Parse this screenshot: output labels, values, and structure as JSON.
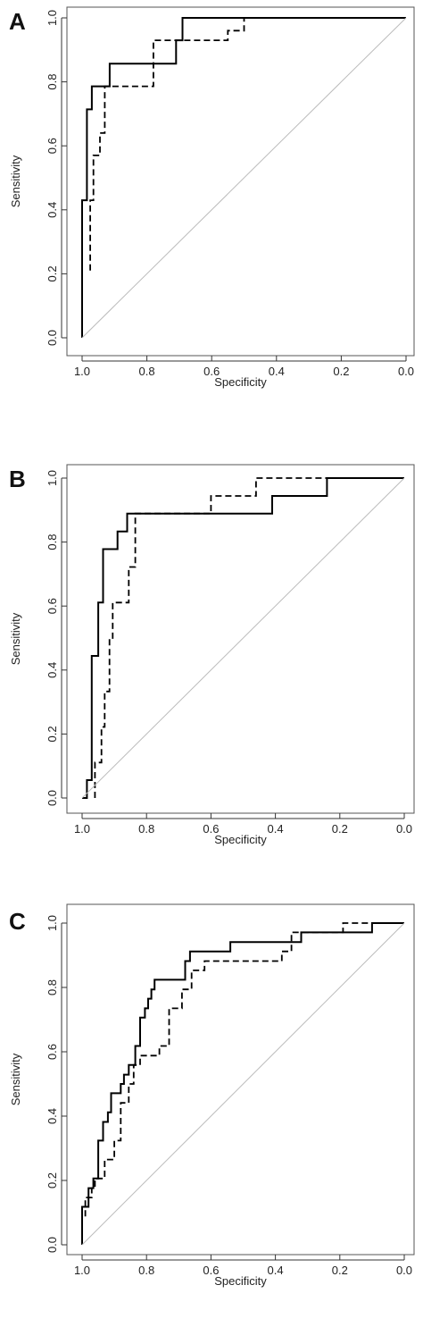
{
  "chart_data": [
    {
      "type": "line",
      "panel_label": "A",
      "xlabel": "Specificity",
      "ylabel": "Sensitivity",
      "xlim": [
        1.0,
        0.0
      ],
      "ylim": [
        0.0,
        1.0
      ],
      "x_ticks": [
        "1.0",
        "0.8",
        "0.6",
        "0.4",
        "0.2",
        "0.0"
      ],
      "y_ticks": [
        "0.0",
        "0.2",
        "0.4",
        "0.6",
        "0.8",
        "1.0"
      ],
      "grid": false,
      "series": [
        {
          "style": "solid",
          "color": "#000000",
          "x": [
            1.0,
            1.0,
            0.985,
            0.985,
            0.97,
            0.97,
            0.915,
            0.915,
            0.71,
            0.71,
            0.69,
            0.69,
            0.0
          ],
          "y": [
            0.0,
            0.43,
            0.43,
            0.714,
            0.714,
            0.786,
            0.786,
            0.857,
            0.857,
            0.93,
            0.93,
            1.0,
            1.0
          ]
        },
        {
          "style": "dashed",
          "color": "#000000",
          "x": [
            0.975,
            0.975,
            0.965,
            0.965,
            0.945,
            0.945,
            0.93,
            0.93,
            0.92,
            0.92,
            0.78,
            0.78,
            0.55,
            0.55,
            0.5,
            0.5,
            0.0
          ],
          "y": [
            0.21,
            0.43,
            0.43,
            0.57,
            0.57,
            0.64,
            0.64,
            0.786,
            0.786,
            0.786,
            0.786,
            0.93,
            0.93,
            0.96,
            0.96,
            1.0,
            1.0
          ]
        },
        {
          "style": "reference",
          "color": "#bbbbbb",
          "x": [
            1.0,
            0.0
          ],
          "y": [
            0.0,
            1.0
          ]
        }
      ]
    },
    {
      "type": "line",
      "panel_label": "B",
      "xlabel": "Specificity",
      "ylabel": "Sensitivity",
      "xlim": [
        1.0,
        0.0
      ],
      "ylim": [
        0.0,
        1.0
      ],
      "x_ticks": [
        "1.0",
        "0.8",
        "0.6",
        "0.4",
        "0.2",
        "0.0"
      ],
      "y_ticks": [
        "0.0",
        "0.2",
        "0.4",
        "0.6",
        "0.8",
        "1.0"
      ],
      "grid": false,
      "series": [
        {
          "style": "solid",
          "color": "#000000",
          "x": [
            1.0,
            0.985,
            0.985,
            0.97,
            0.97,
            0.95,
            0.95,
            0.935,
            0.935,
            0.89,
            0.89,
            0.86,
            0.86,
            0.83,
            0.83,
            0.41,
            0.41,
            0.24,
            0.24,
            0.0
          ],
          "y": [
            0.0,
            0.0,
            0.056,
            0.056,
            0.444,
            0.444,
            0.611,
            0.611,
            0.778,
            0.778,
            0.833,
            0.833,
            0.889,
            0.889,
            0.889,
            0.889,
            0.944,
            0.944,
            1.0,
            1.0
          ]
        },
        {
          "style": "dashed",
          "color": "#000000",
          "x": [
            0.96,
            0.96,
            0.94,
            0.94,
            0.93,
            0.93,
            0.915,
            0.915,
            0.905,
            0.905,
            0.885,
            0.885,
            0.855,
            0.855,
            0.835,
            0.835,
            0.6,
            0.6,
            0.46,
            0.46,
            0.0
          ],
          "y": [
            0.0,
            0.111,
            0.111,
            0.222,
            0.222,
            0.333,
            0.333,
            0.5,
            0.5,
            0.611,
            0.611,
            0.611,
            0.611,
            0.722,
            0.722,
            0.889,
            0.889,
            0.944,
            0.944,
            1.0,
            1.0
          ]
        },
        {
          "style": "reference",
          "color": "#bbbbbb",
          "x": [
            1.0,
            0.0
          ],
          "y": [
            0.0,
            1.0
          ]
        }
      ]
    },
    {
      "type": "line",
      "panel_label": "C",
      "xlabel": "Specificity",
      "ylabel": "Sensitivity",
      "xlim": [
        1.0,
        0.0
      ],
      "ylim": [
        0.0,
        1.0
      ],
      "x_ticks": [
        "1.0",
        "0.8",
        "0.6",
        "0.4",
        "0.2",
        "0.0"
      ],
      "y_ticks": [
        "0.0",
        "0.2",
        "0.4",
        "0.6",
        "0.8",
        "1.0"
      ],
      "grid": false,
      "series": [
        {
          "style": "solid",
          "color": "#000000",
          "x": [
            1.0,
            1.0,
            0.98,
            0.98,
            0.965,
            0.965,
            0.95,
            0.95,
            0.935,
            0.935,
            0.92,
            0.92,
            0.91,
            0.91,
            0.88,
            0.88,
            0.87,
            0.87,
            0.855,
            0.855,
            0.835,
            0.835,
            0.82,
            0.82,
            0.805,
            0.805,
            0.795,
            0.795,
            0.785,
            0.785,
            0.775,
            0.775,
            0.68,
            0.68,
            0.665,
            0.665,
            0.54,
            0.54,
            0.32,
            0.32,
            0.1,
            0.1,
            0.0
          ],
          "y": [
            0.0,
            0.118,
            0.118,
            0.176,
            0.176,
            0.206,
            0.206,
            0.324,
            0.324,
            0.382,
            0.382,
            0.412,
            0.412,
            0.471,
            0.471,
            0.5,
            0.5,
            0.529,
            0.529,
            0.559,
            0.559,
            0.618,
            0.618,
            0.706,
            0.706,
            0.735,
            0.735,
            0.765,
            0.765,
            0.794,
            0.794,
            0.824,
            0.824,
            0.882,
            0.882,
            0.912,
            0.912,
            0.941,
            0.941,
            0.971,
            0.971,
            1.0,
            1.0
          ]
        },
        {
          "style": "dashed",
          "color": "#000000",
          "x": [
            0.99,
            0.99,
            0.97,
            0.97,
            0.96,
            0.96,
            0.93,
            0.93,
            0.9,
            0.9,
            0.88,
            0.88,
            0.855,
            0.855,
            0.84,
            0.84,
            0.82,
            0.82,
            0.76,
            0.76,
            0.73,
            0.73,
            0.69,
            0.69,
            0.66,
            0.66,
            0.62,
            0.62,
            0.38,
            0.38,
            0.35,
            0.35,
            0.19,
            0.19,
            0.0
          ],
          "y": [
            0.088,
            0.147,
            0.147,
            0.176,
            0.176,
            0.206,
            0.206,
            0.265,
            0.265,
            0.324,
            0.324,
            0.441,
            0.441,
            0.5,
            0.5,
            0.559,
            0.559,
            0.588,
            0.588,
            0.618,
            0.618,
            0.735,
            0.735,
            0.794,
            0.794,
            0.853,
            0.853,
            0.882,
            0.882,
            0.912,
            0.912,
            0.971,
            0.971,
            1.0,
            1.0
          ]
        },
        {
          "style": "reference",
          "color": "#bbbbbb",
          "x": [
            1.0,
            0.0
          ],
          "y": [
            0.0,
            1.0
          ]
        }
      ]
    }
  ]
}
